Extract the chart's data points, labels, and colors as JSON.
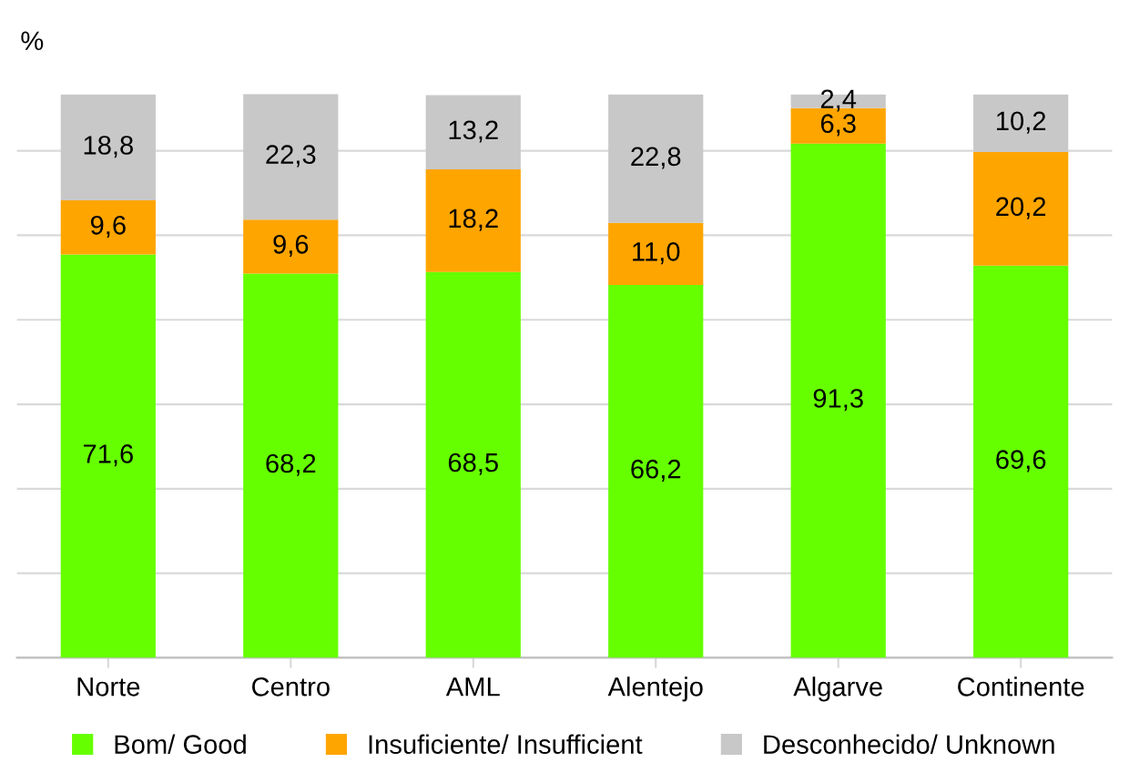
{
  "chart_data": {
    "type": "bar",
    "stacked": true,
    "ylabel": "%",
    "categories": [
      "Norte",
      "Centro",
      "AML",
      "Alentejo",
      "Algarve",
      "Continente"
    ],
    "series": [
      {
        "name": "Bom/ Good",
        "color": "#66ff00",
        "values": [
          71.6,
          68.2,
          68.5,
          66.2,
          91.3,
          69.6
        ],
        "value_labels": [
          "71,6",
          "68,2",
          "68,5",
          "66,2",
          "91,3",
          "69,6"
        ]
      },
      {
        "name": "Insuficiente/ Insufficient",
        "color": "#ffa500",
        "values": [
          9.6,
          9.6,
          18.2,
          11.0,
          6.3,
          20.2
        ],
        "value_labels": [
          "9,6",
          "9,6",
          "18,2",
          "11,0",
          "6,3",
          "20,2"
        ]
      },
      {
        "name": "Desconhecido/ Unknown",
        "color": "#c8c8c8",
        "values": [
          18.8,
          22.3,
          13.2,
          22.8,
          2.4,
          10.2
        ],
        "value_labels": [
          "18,8",
          "22,3",
          "13,2",
          "22,8",
          "2,4",
          "10,2"
        ]
      }
    ],
    "grid": "y",
    "legend": "bottom"
  }
}
